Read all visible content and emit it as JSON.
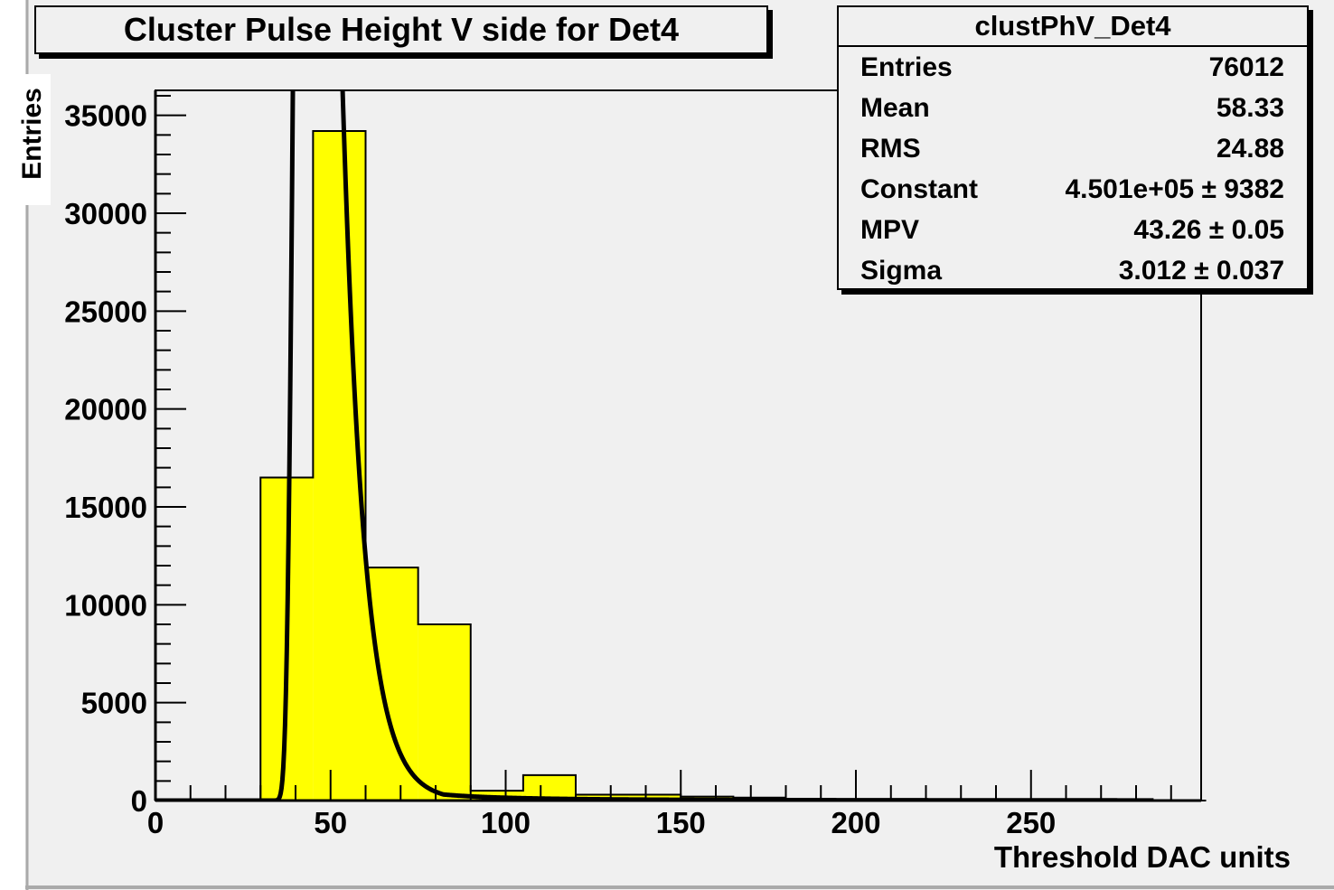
{
  "title": "Cluster Pulse Height V side for Det4",
  "stats": {
    "name": "clustPhV_Det4",
    "rows": [
      {
        "label": "Entries",
        "value": "76012"
      },
      {
        "label": "Mean",
        "value": "58.33"
      },
      {
        "label": "RMS",
        "value": "24.88"
      },
      {
        "label": "Constant",
        "value": "4.501e+05 ± 9382"
      },
      {
        "label": "MPV",
        "value": "43.26 ± 0.05"
      },
      {
        "label": "Sigma",
        "value": "3.012 ± 0.037"
      }
    ]
  },
  "colors": {
    "fill": "#ffff00",
    "frame_bg": "#f0f0f0",
    "line": "#000000"
  },
  "chart_data": {
    "type": "bar",
    "xlabel": "Threshold DAC units",
    "ylabel": "Entries",
    "xlim": [
      0,
      300
    ],
    "ylim": [
      0,
      36500
    ],
    "xticks": [
      0,
      50,
      100,
      150,
      200,
      250
    ],
    "yticks": [
      0,
      5000,
      10000,
      15000,
      20000,
      25000,
      30000,
      35000
    ],
    "bins": [
      {
        "x0": 0,
        "x1": 30,
        "value": 0
      },
      {
        "x0": 30,
        "x1": 45,
        "value": 16500
      },
      {
        "x0": 45,
        "x1": 60,
        "value": 34200
      },
      {
        "x0": 60,
        "x1": 75,
        "value": 11900
      },
      {
        "x0": 75,
        "x1": 90,
        "value": 9000
      },
      {
        "x0": 90,
        "x1": 105,
        "value": 500
      },
      {
        "x0": 105,
        "x1": 120,
        "value": 1300
      },
      {
        "x0": 120,
        "x1": 135,
        "value": 300
      },
      {
        "x0": 135,
        "x1": 150,
        "value": 300
      },
      {
        "x0": 150,
        "x1": 165,
        "value": 200
      },
      {
        "x0": 165,
        "x1": 180,
        "value": 150
      },
      {
        "x0": 180,
        "x1": 300,
        "value": 0
      }
    ],
    "fit": {
      "function": "landau",
      "constant": 450100,
      "mpv": 43.26,
      "sigma": 3.012,
      "x_range": [
        0,
        285
      ]
    }
  }
}
